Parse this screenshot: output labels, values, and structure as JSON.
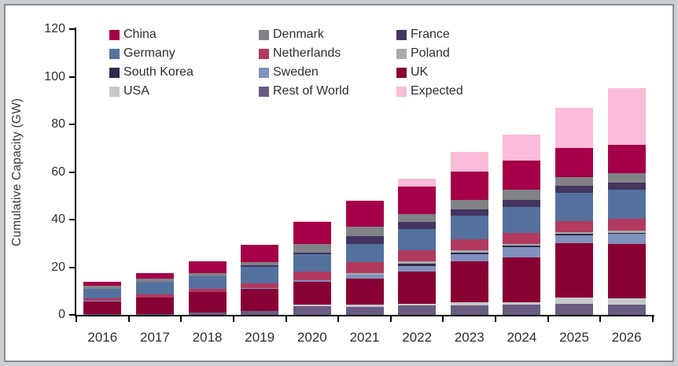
{
  "y_axis": {
    "title": "Cumulative Capacity (GW)",
    "ticks": [
      0,
      20,
      40,
      60,
      80,
      100,
      120
    ],
    "max": 120
  },
  "chart_data": {
    "type": "bar",
    "stacked": true,
    "title": "",
    "xlabel": "",
    "ylabel": "Cumulative Capacity (GW)",
    "ylim": [
      0,
      120
    ],
    "grid": "off",
    "legend_position": "top-left-inside",
    "categories": [
      "2016",
      "2017",
      "2018",
      "2019",
      "2020",
      "2021",
      "2022",
      "2023",
      "2024",
      "2025",
      "2026"
    ],
    "series": [
      {
        "name": "China",
        "color": "#A50048",
        "values": [
          1.5,
          2.4,
          5.1,
          7.3,
          9.1,
          11.0,
          11.4,
          12.1,
          12.1,
          12.1,
          11.9
        ]
      },
      {
        "name": "Denmark",
        "color": "#808285",
        "values": [
          1.3,
          1.3,
          1.3,
          1.4,
          3.5,
          3.8,
          3.3,
          3.8,
          4.4,
          3.6,
          4.1
        ]
      },
      {
        "name": "France",
        "color": "#443560",
        "values": [
          0,
          0,
          0,
          0.4,
          0.9,
          3.3,
          3.1,
          2.8,
          3.0,
          3.0,
          2.9
        ]
      },
      {
        "name": "Germany",
        "color": "#54719E",
        "values": [
          4.1,
          5.3,
          5.4,
          7.0,
          7.2,
          7.6,
          9.0,
          10.0,
          10.8,
          11.9,
          12.1
        ]
      },
      {
        "name": "Netherlands",
        "color": "#B13A5E",
        "values": [
          1.1,
          1.1,
          1.1,
          2.2,
          3.7,
          4.8,
          4.6,
          4.6,
          4.6,
          4.9,
          4.9
        ]
      },
      {
        "name": "Poland",
        "color": "#A8AAAC",
        "values": [
          0,
          0,
          0,
          0,
          0,
          0.6,
          0.9,
          0.9,
          0.8,
          0.6,
          1.0
        ]
      },
      {
        "name": "South Korea",
        "color": "#302A4B",
        "values": [
          0,
          0,
          0,
          0,
          0,
          0,
          0.9,
          0.6,
          0.6,
          0.7,
          0.5
        ]
      },
      {
        "name": "Sweden",
        "color": "#8191BD",
        "values": [
          0.2,
          0.2,
          0.2,
          0.3,
          0.6,
          1.6,
          2.4,
          3.1,
          4.2,
          3.1,
          4.2
        ]
      },
      {
        "name": "UK",
        "color": "#880134",
        "values": [
          5.1,
          6.7,
          8.4,
          9.0,
          9.7,
          11.0,
          13.5,
          17.2,
          18.9,
          23.0,
          23.0
        ]
      },
      {
        "name": "USA",
        "color": "#C6C8CA",
        "values": [
          0,
          0,
          0.1,
          0.1,
          0.7,
          0.9,
          0.8,
          1.1,
          1.0,
          2.5,
          2.6
        ]
      },
      {
        "name": "Rest of World",
        "color": "#695C80",
        "values": [
          0.5,
          0.5,
          1.0,
          1.7,
          3.5,
          3.3,
          3.9,
          4.1,
          4.3,
          4.7,
          4.2
        ]
      },
      {
        "name": "Expected",
        "color": "#FBBCD9",
        "values": [
          0,
          0,
          0,
          0,
          0.5,
          0,
          3.5,
          8.0,
          11.0,
          16.8,
          23.9
        ]
      }
    ],
    "stack_order_bottom_to_top": [
      "Rest of World",
      "USA",
      "UK",
      "Sweden",
      "South Korea",
      "Poland",
      "Netherlands",
      "Germany",
      "France",
      "Denmark",
      "China",
      "Expected"
    ],
    "legend_order": [
      "China",
      "Denmark",
      "France",
      "Germany",
      "Netherlands",
      "Poland",
      "South Korea",
      "Sweden",
      "UK",
      "USA",
      "Rest of World",
      "Expected"
    ],
    "axis_color": "#000000",
    "text_color": "#2e2e2e",
    "frame_border_color": "#8a8e91",
    "frame_background": "#cbcfd2"
  }
}
